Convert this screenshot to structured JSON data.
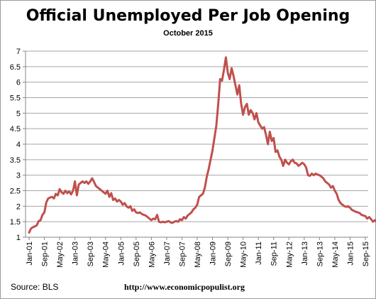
{
  "chart_data": {
    "type": "line",
    "title": "Official Unemployed Per Job Opening",
    "subtitle": "October 2015",
    "xlabel": "",
    "ylabel": "",
    "ylim": [
      1,
      7
    ],
    "yticks": [
      "1",
      "1.5",
      "2",
      "2.5",
      "3",
      "3.5",
      "4",
      "4.5",
      "5",
      "5.5",
      "6",
      "6.5",
      "7"
    ],
    "xticks": [
      "Jan-01",
      "Sep-01",
      "May-02",
      "Jan-03",
      "Sep-03",
      "May-04",
      "Jan-05",
      "Sep-05",
      "May-06",
      "Jan-07",
      "Sep-07",
      "May-08",
      "Jan-09",
      "Sep-09",
      "May-10",
      "Jan-11",
      "Sep-11",
      "May-12",
      "Jan-13",
      "Sep-13",
      "May-14",
      "Jan-15",
      "Sep-15"
    ],
    "grid": true,
    "legend": "none",
    "line_color": "#c0504d",
    "series": [
      {
        "x_start": "Jan-01",
        "x_end": "Oct-15",
        "values": [
          1.15,
          1.28,
          1.32,
          1.35,
          1.38,
          1.52,
          1.55,
          1.72,
          1.8,
          2.12,
          2.25,
          2.28,
          2.3,
          2.25,
          2.4,
          2.35,
          2.55,
          2.45,
          2.4,
          2.5,
          2.42,
          2.48,
          2.38,
          2.5,
          2.8,
          2.35,
          2.7,
          2.75,
          2.8,
          2.75,
          2.8,
          2.72,
          2.8,
          2.9,
          2.78,
          2.65,
          2.6,
          2.55,
          2.5,
          2.45,
          2.4,
          2.5,
          2.3,
          2.42,
          2.2,
          2.25,
          2.15,
          2.2,
          2.15,
          2.05,
          2.1,
          2.0,
          1.95,
          2.0,
          1.85,
          1.9,
          1.8,
          1.78,
          1.8,
          1.75,
          1.72,
          1.7,
          1.65,
          1.6,
          1.55,
          1.6,
          1.58,
          1.72,
          1.5,
          1.48,
          1.5,
          1.48,
          1.5,
          1.52,
          1.48,
          1.46,
          1.5,
          1.52,
          1.5,
          1.58,
          1.55,
          1.65,
          1.6,
          1.7,
          1.75,
          1.8,
          1.9,
          1.95,
          2.05,
          2.3,
          2.35,
          2.4,
          2.6,
          2.95,
          3.2,
          3.5,
          3.8,
          4.2,
          4.6,
          5.3,
          6.1,
          6.05,
          6.4,
          6.8,
          6.3,
          6.1,
          6.45,
          6.2,
          5.9,
          5.6,
          5.9,
          5.3,
          4.95,
          5.2,
          5.3,
          4.95,
          5.1,
          5.0,
          4.8,
          5.0,
          4.7,
          4.6,
          4.5,
          4.55,
          4.3,
          4.0,
          4.4,
          4.1,
          4.2,
          3.75,
          3.8,
          3.6,
          3.5,
          3.3,
          3.5,
          3.4,
          3.35,
          3.45,
          3.5,
          3.4,
          3.38,
          3.3,
          3.35,
          3.4,
          3.35,
          3.25,
          3.0,
          2.98,
          3.05,
          3.0,
          3.05,
          3.02,
          3.0,
          2.95,
          2.9,
          2.8,
          2.75,
          2.7,
          2.6,
          2.65,
          2.5,
          2.4,
          2.2,
          2.1,
          2.05,
          2.0,
          1.98,
          2.0,
          1.95,
          1.88,
          1.85,
          1.82,
          1.8,
          1.78,
          1.72,
          1.7,
          1.68,
          1.6,
          1.65,
          1.58,
          1.5,
          1.55,
          1.48,
          1.4,
          1.45,
          1.52,
          1.5,
          1.45,
          1.48,
          1.5,
          1.47,
          1.5,
          1.48,
          1.46
        ]
      }
    ]
  },
  "footer": {
    "source": "Source:  BLS",
    "url": "http://www.economicpopulist.org"
  }
}
